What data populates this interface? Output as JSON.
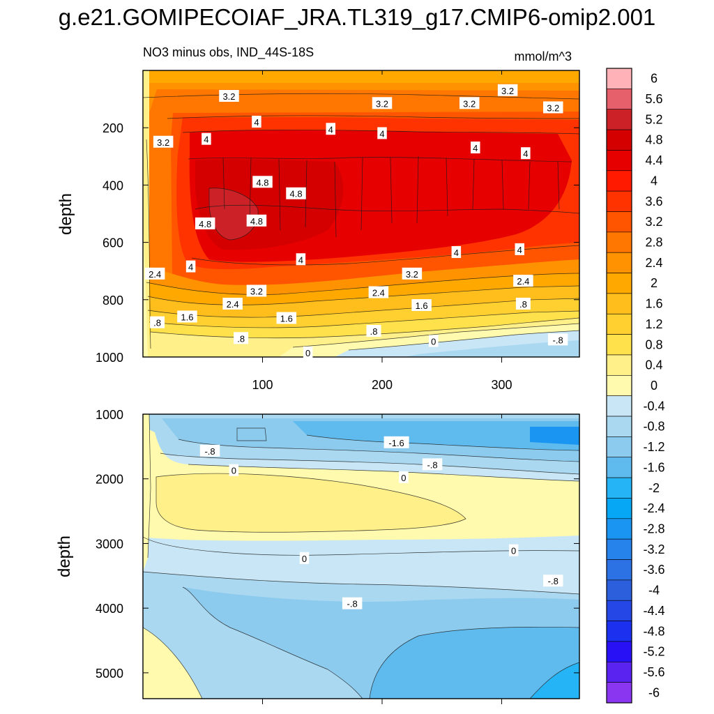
{
  "figure": {
    "title": "g.e21.GOMIPECOIAF_JRA.TL319_g17.CMIP6-omip2.001",
    "subtitle_left": "NO3 minus obs, IND_44S-18S",
    "subtitle_right": "mmol/m^3"
  },
  "chart_data": [
    {
      "type": "contour",
      "panel": "upper",
      "title": "NO3 minus obs, IND_44S-18S",
      "units": "mmol/m^3",
      "xlabel": "",
      "ylabel": "depth",
      "xlim": [
        0,
        365
      ],
      "ylim": [
        1000,
        0
      ],
      "xticks": [
        "100",
        "200",
        "300"
      ],
      "yticks": [
        "200",
        "400",
        "600",
        "800",
        "1000"
      ],
      "ytick_values": [
        200,
        400,
        600,
        800,
        1000
      ],
      "xtick_values": [
        100,
        200,
        300
      ],
      "contour_labels": [
        {
          "text": "3.2",
          "x": 72,
          "y": 90
        },
        {
          "text": "3.2",
          "x": 200,
          "y": 115
        },
        {
          "text": "3.2",
          "x": 273,
          "y": 115
        },
        {
          "text": "3.2",
          "x": 305,
          "y": 70
        },
        {
          "text": "3.2",
          "x": 343,
          "y": 130
        },
        {
          "text": "3.2",
          "x": 17,
          "y": 250
        },
        {
          "text": "4",
          "x": 95,
          "y": 180
        },
        {
          "text": "4",
          "x": 53,
          "y": 240
        },
        {
          "text": "4",
          "x": 157,
          "y": 205
        },
        {
          "text": "4",
          "x": 200,
          "y": 220
        },
        {
          "text": "4",
          "x": 278,
          "y": 270
        },
        {
          "text": "4",
          "x": 320,
          "y": 290
        },
        {
          "text": "4.8",
          "x": 100,
          "y": 390
        },
        {
          "text": "4.8",
          "x": 128,
          "y": 430
        },
        {
          "text": "4.8",
          "x": 52,
          "y": 535
        },
        {
          "text": "4.8",
          "x": 95,
          "y": 525
        },
        {
          "text": "4",
          "x": 262,
          "y": 635
        },
        {
          "text": "4",
          "x": 315,
          "y": 625
        },
        {
          "text": "2.4",
          "x": 10,
          "y": 710
        },
        {
          "text": "4",
          "x": 40,
          "y": 685
        },
        {
          "text": "4",
          "x": 132,
          "y": 660
        },
        {
          "text": "3.2",
          "x": 95,
          "y": 770
        },
        {
          "text": "3.2",
          "x": 225,
          "y": 710
        },
        {
          "text": "2.4",
          "x": 318,
          "y": 735
        },
        {
          "text": "2.4",
          "x": 75,
          "y": 815
        },
        {
          "text": "2.4",
          "x": 197,
          "y": 775
        },
        {
          "text": "1.6",
          "x": 37,
          "y": 860
        },
        {
          "text": "1.6",
          "x": 120,
          "y": 865
        },
        {
          "text": "1.6",
          "x": 233,
          "y": 820
        },
        {
          "text": ".8",
          "x": 12,
          "y": 880
        },
        {
          "text": ".8",
          "x": 82,
          "y": 935
        },
        {
          "text": ".8",
          "x": 193,
          "y": 910
        },
        {
          "text": ".8",
          "x": 318,
          "y": 815
        },
        {
          "text": "0",
          "x": 138,
          "y": 985
        },
        {
          "text": "0",
          "x": 243,
          "y": 945
        },
        {
          "text": "-.8",
          "x": 347,
          "y": 940
        }
      ]
    },
    {
      "type": "contour",
      "panel": "lower",
      "xlabel": "",
      "ylabel": "depth",
      "xlim": [
        0,
        365
      ],
      "ylim": [
        5400,
        1000
      ],
      "xticks": [],
      "yticks": [
        "1000",
        "2000",
        "3000",
        "4000",
        "5000"
      ],
      "ytick_values": [
        1000,
        2000,
        3000,
        4000,
        5000
      ],
      "xtick_values": [
        100,
        200,
        300
      ],
      "contour_labels": [
        {
          "text": "-.8",
          "x": 56,
          "y": 1570
        },
        {
          "text": "-1.6",
          "x": 212,
          "y": 1440
        },
        {
          "text": "-.8",
          "x": 242,
          "y": 1780
        },
        {
          "text": "0",
          "x": 76,
          "y": 1870
        },
        {
          "text": "0",
          "x": 218,
          "y": 1980
        },
        {
          "text": "0",
          "x": 135,
          "y": 3230
        },
        {
          "text": "0",
          "x": 310,
          "y": 3110
        },
        {
          "text": "-.8",
          "x": 343,
          "y": 3580
        },
        {
          "text": "-.8",
          "x": 175,
          "y": 3930
        }
      ]
    },
    {
      "type": "colorbar",
      "levels": [
        "6",
        "5.6",
        "5.2",
        "4.8",
        "4.4",
        "4",
        "3.6",
        "3.2",
        "2.8",
        "2.4",
        "2",
        "1.6",
        "1.2",
        "0.8",
        "0.4",
        "0",
        "-0.4",
        "-0.8",
        "-1.2",
        "-1.6",
        "-2",
        "-2.4",
        "-2.8",
        "-3.2",
        "-3.6",
        "-4",
        "-4.4",
        "-4.8",
        "-5.2",
        "-5.6",
        "-6"
      ],
      "colors": [
        "#ffb3b8",
        "#e5606a",
        "#cc2227",
        "#d40000",
        "#e60000",
        "#ff1a00",
        "#ff3300",
        "#ff5500",
        "#ff7700",
        "#ff9200",
        "#ffa800",
        "#ffbe1c",
        "#ffd030",
        "#ffe14c",
        "#fff08a",
        "#fffaae",
        "#c8e6f5",
        "#a9d8f0",
        "#8ccbee",
        "#5fbbee",
        "#25b4f5",
        "#06a8f6",
        "#1a96f2",
        "#2683ec",
        "#2d72e4",
        "#2b5fdb",
        "#2447e6",
        "#1c30f0",
        "#2812f5",
        "#5a23f0",
        "#8a35f0"
      ]
    }
  ]
}
